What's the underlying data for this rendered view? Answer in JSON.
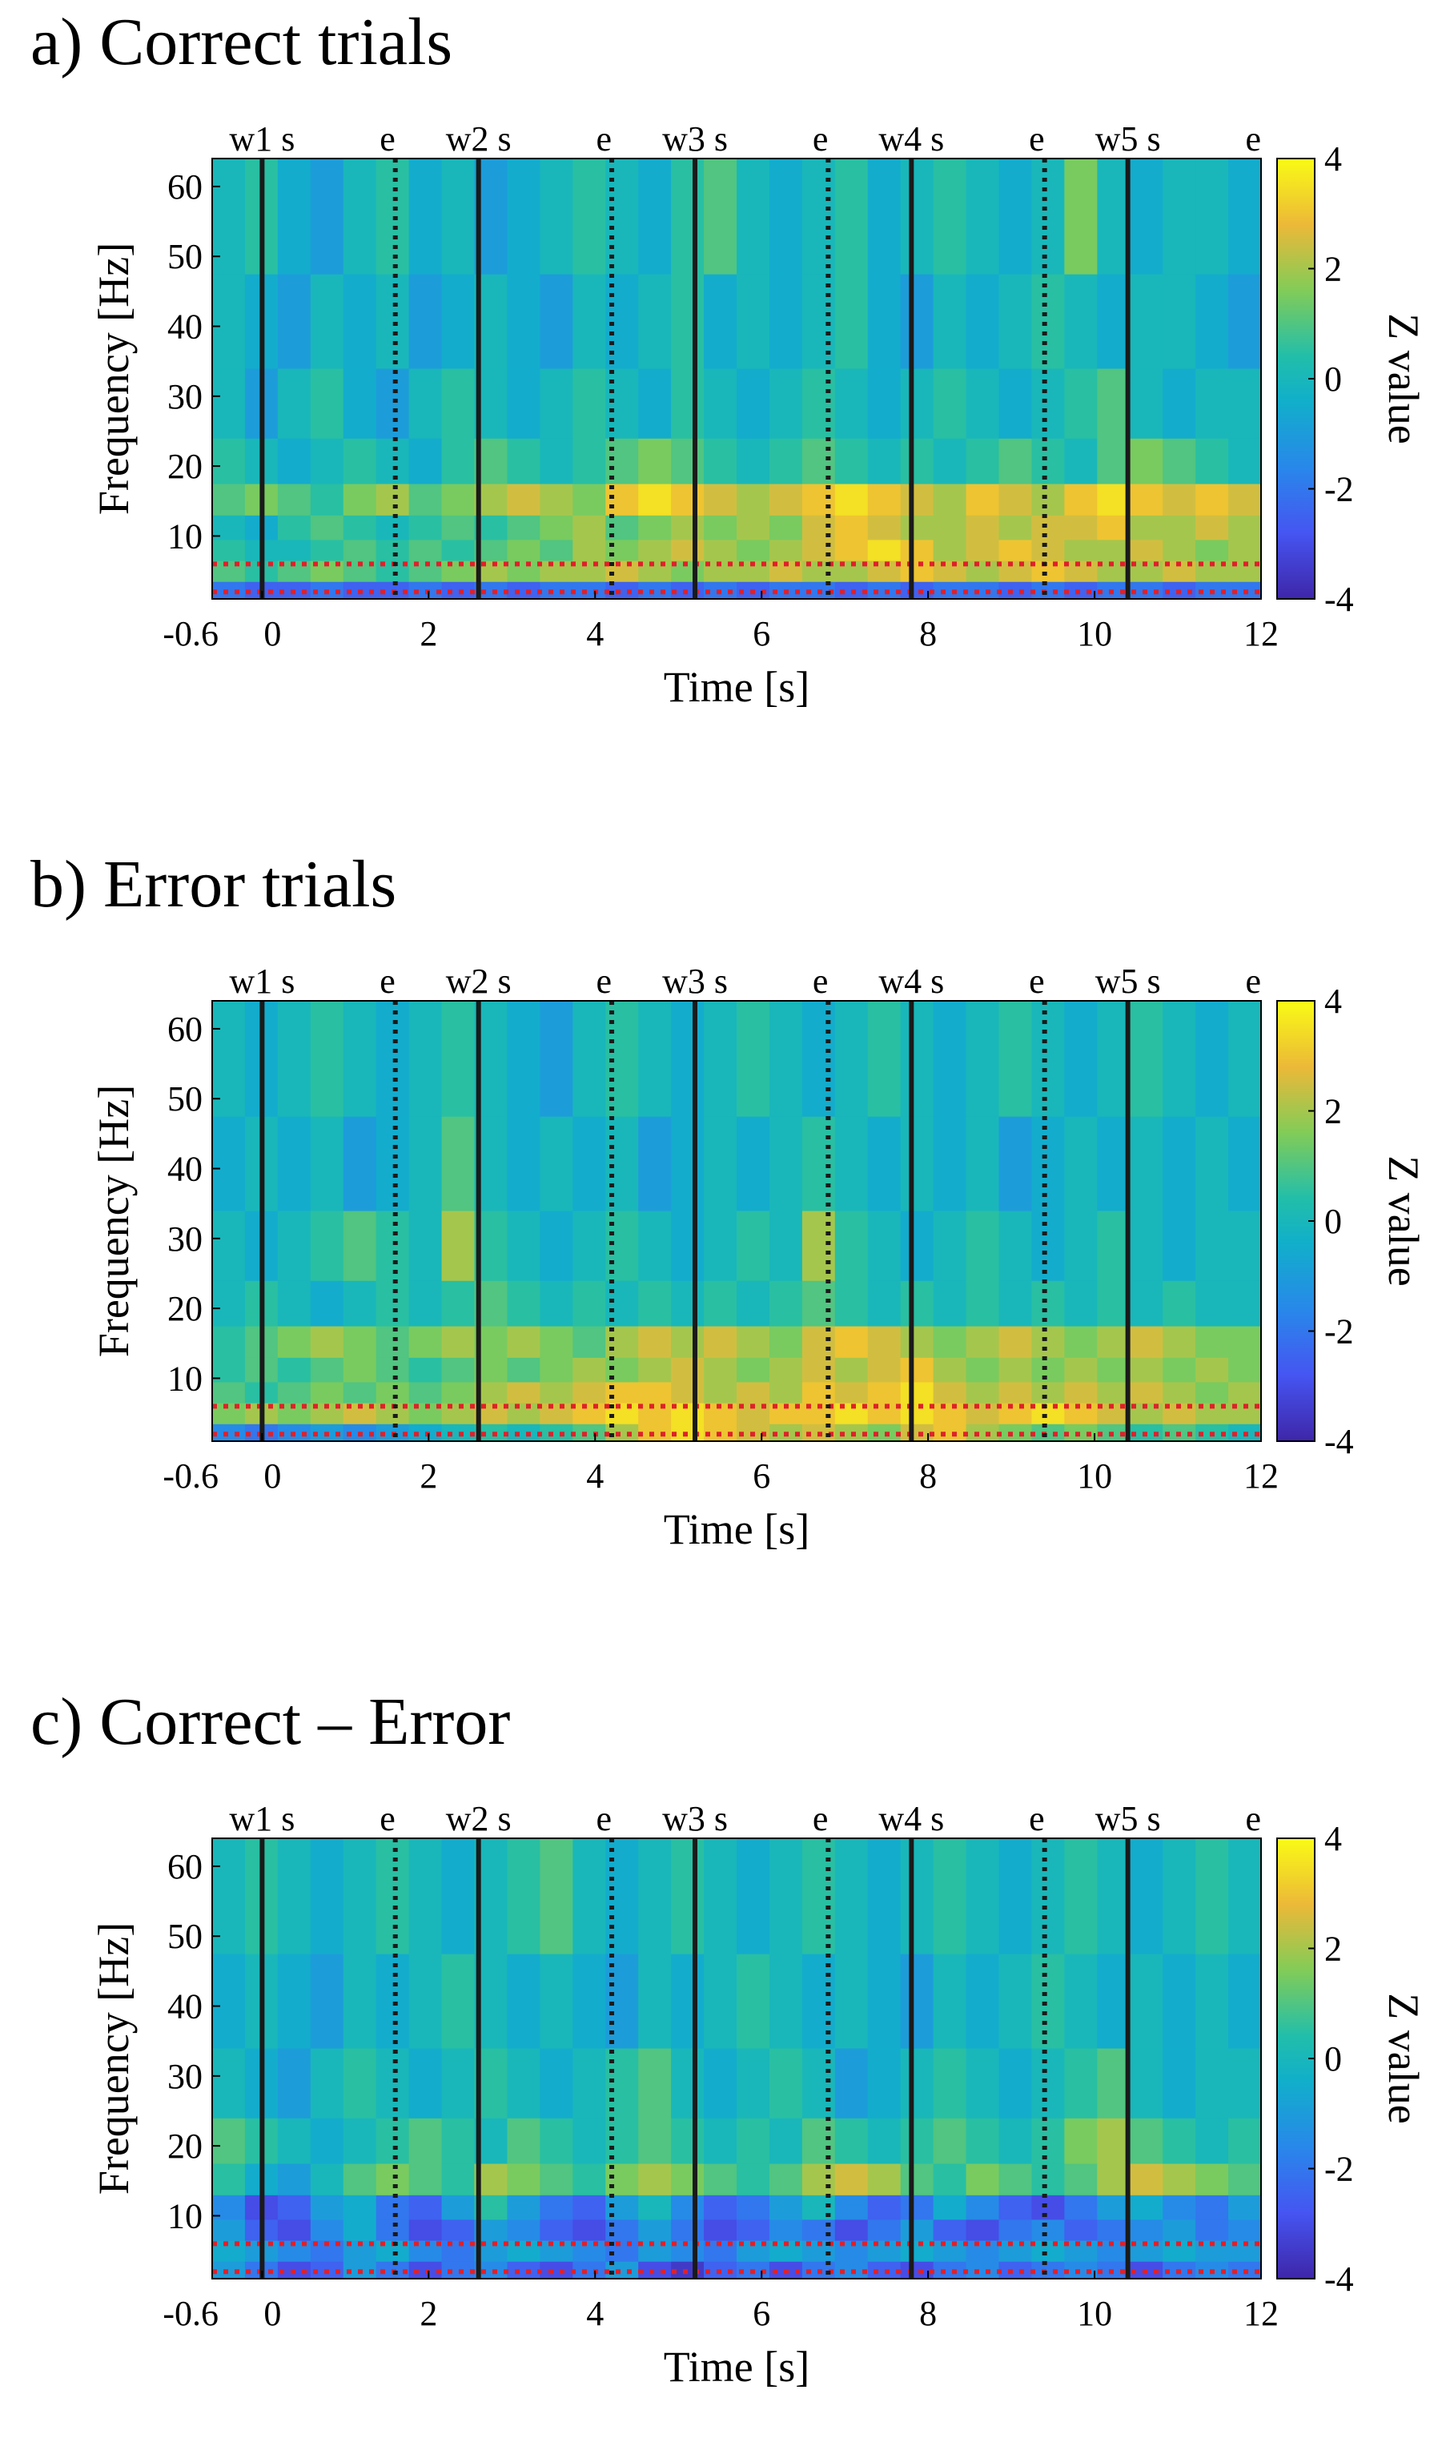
{
  "panels": [
    {
      "title": "a) Correct trials"
    },
    {
      "title": "b) Error trials"
    },
    {
      "title": "c) Correct – Error"
    }
  ],
  "colorbar": {
    "label": "Z value",
    "ticks": [
      "4",
      "2",
      "0",
      "-2",
      "-4"
    ]
  },
  "axes": {
    "ylabel": "Frequency [Hz]",
    "xlabel": "Time [s]",
    "yticks": [
      10,
      20,
      30,
      40,
      50,
      60
    ],
    "xticks": [
      "-0.6",
      "0",
      "2",
      "4",
      "6",
      "8",
      "10",
      "12"
    ]
  },
  "events": [
    {
      "label": "w1 s",
      "t": 0
    },
    {
      "label": "e",
      "t": 1.6
    },
    {
      "label": "w2 s",
      "t": 2.6
    },
    {
      "label": "e",
      "t": 4.2
    },
    {
      "label": "w3 s",
      "t": 5.2
    },
    {
      "label": "e",
      "t": 6.8
    },
    {
      "label": "w4 s",
      "t": 7.8
    },
    {
      "label": "e",
      "t": 9.4
    },
    {
      "label": "w5 s",
      "t": 10.4
    },
    {
      "label": "e",
      "t": 12
    }
  ],
  "chart_data": [
    {
      "type": "heatmap",
      "title": "a) Correct trials",
      "xlabel": "Time [s]",
      "ylabel": "Frequency [Hz]",
      "xlim": [
        -0.6,
        12
      ],
      "ylim": [
        1,
        64
      ],
      "clim": [
        -4,
        4
      ],
      "colorbar_label": "Z value",
      "solid_lines_s": [
        0,
        2.6,
        5.2,
        7.8,
        10.4
      ],
      "dotted_lines_s": [
        1.6,
        4.2,
        6.8,
        9.4
      ],
      "red_dotted_hz": [
        2,
        6
      ],
      "rows": [
        {
          "f": 2,
          "z": [
            -2,
            -2.5,
            -2.5,
            -2,
            -2.5,
            -2.5,
            -2,
            -2.5,
            -2,
            -2.5,
            -2,
            -2,
            -2.5,
            -2,
            -2.5,
            -2,
            -2.5,
            -2,
            -2,
            -2.5,
            -2,
            -2.5,
            -2,
            -2,
            -2.5,
            -2,
            -2.5,
            -2,
            -2,
            -2.5,
            -2,
            -2
          ]
        },
        {
          "f": 5,
          "z": [
            1,
            0.5,
            1,
            1.5,
            1,
            0.5,
            1,
            1.5,
            2,
            1.5,
            2,
            2,
            2.5,
            2,
            1.5,
            2,
            2,
            2.5,
            2,
            2,
            2.5,
            3,
            2.5,
            2,
            2.5,
            3,
            2.5,
            2,
            2,
            2.5,
            2,
            2
          ]
        },
        {
          "f": 8,
          "z": [
            0.5,
            0,
            0,
            0.5,
            1,
            0.5,
            1,
            0.5,
            1,
            1.5,
            1,
            2,
            1.5,
            2,
            2.5,
            2,
            1.5,
            2,
            2.5,
            3,
            3.5,
            3,
            2,
            2.5,
            3,
            2.5,
            2,
            2,
            2.5,
            2,
            1.5,
            2
          ]
        },
        {
          "f": 11,
          "z": [
            0,
            -0.5,
            0.5,
            1,
            0.5,
            0,
            0.5,
            1,
            0.5,
            1,
            1.5,
            2,
            1,
            1.5,
            2,
            1.5,
            2,
            1.5,
            2.5,
            3,
            2.5,
            2,
            2,
            2.5,
            2,
            2.5,
            2.5,
            3,
            2,
            2,
            2.5,
            2
          ]
        },
        {
          "f": 15,
          "z": [
            1,
            1.5,
            1,
            0.5,
            1.5,
            2,
            1,
            1.5,
            2,
            2.5,
            2,
            1.5,
            3,
            3.5,
            3,
            2.5,
            2,
            2.5,
            3,
            3.5,
            3,
            2.5,
            2,
            3,
            2.5,
            2,
            3,
            3.5,
            3,
            2.5,
            3,
            2.5
          ]
        },
        {
          "f": 20,
          "z": [
            0.5,
            0,
            -0.5,
            0,
            0.5,
            0,
            -0.5,
            0.5,
            1,
            0.5,
            0,
            0.5,
            1,
            1.5,
            1,
            0.5,
            0,
            0.5,
            1,
            0.5,
            0,
            0.5,
            0,
            0.5,
            1,
            0.5,
            0,
            1,
            1.5,
            1,
            0.5,
            0
          ]
        },
        {
          "f": 28,
          "z": [
            0,
            -1,
            0,
            0.5,
            -0.5,
            -1,
            0,
            0.5,
            0,
            -0.5,
            0,
            0.5,
            0,
            -0.5,
            0.5,
            0,
            -0.5,
            0,
            0.5,
            0,
            -0.5,
            0,
            0.5,
            0,
            -0.5,
            0,
            0.5,
            1,
            0,
            -0.5,
            0,
            0
          ]
        },
        {
          "f": 40,
          "z": [
            0,
            -0.5,
            -1,
            0,
            -0.5,
            0,
            -1,
            -0.5,
            0,
            -0.5,
            -1,
            0,
            -0.5,
            0,
            0.5,
            -0.5,
            0,
            -0.5,
            0,
            0.5,
            -0.5,
            -1,
            0,
            -0.5,
            0,
            0.5,
            0,
            -0.5,
            0,
            0,
            -0.5,
            -1
          ]
        },
        {
          "f": 55,
          "z": [
            0,
            0.5,
            -0.5,
            -1,
            0,
            0.5,
            -0.5,
            0,
            -1,
            -0.5,
            0,
            0.5,
            0,
            -0.5,
            0.5,
            1,
            0,
            -0.5,
            0,
            0.5,
            -0.5,
            0,
            0.5,
            0,
            -0.5,
            0,
            1.5,
            0,
            -0.5,
            0,
            0,
            -0.5
          ]
        }
      ]
    },
    {
      "type": "heatmap",
      "title": "b) Error trials",
      "xlabel": "Time [s]",
      "ylabel": "Frequency [Hz]",
      "xlim": [
        -0.6,
        12
      ],
      "ylim": [
        1,
        64
      ],
      "clim": [
        -4,
        4
      ],
      "colorbar_label": "Z value",
      "solid_lines_s": [
        0,
        2.6,
        5.2,
        7.8,
        10.4
      ],
      "dotted_lines_s": [
        1.6,
        4.2,
        6.8,
        9.4
      ],
      "red_dotted_hz": [
        2,
        6
      ],
      "rows": [
        {
          "f": 2,
          "z": [
            -1.5,
            -2,
            -1.5,
            -1,
            -1.5,
            -1,
            -0.5,
            0,
            0.5,
            0,
            0.5,
            1,
            2,
            3,
            3.5,
            3,
            2.5,
            2,
            2.5,
            2,
            1.5,
            2.5,
            3,
            2,
            1.5,
            1,
            1.5,
            1,
            0.5,
            1,
            0.5,
            0
          ]
        },
        {
          "f": 5,
          "z": [
            1.5,
            2,
            1.5,
            2,
            2.5,
            2,
            1.5,
            2,
            2.5,
            2,
            2.5,
            3,
            3.5,
            3,
            3.5,
            3,
            2.5,
            3,
            3,
            3.5,
            3,
            3.5,
            3,
            2.5,
            3,
            3.5,
            3,
            2.5,
            2,
            2.5,
            2,
            2
          ]
        },
        {
          "f": 8,
          "z": [
            1,
            0.5,
            1,
            1.5,
            1,
            1.5,
            1,
            1.5,
            2,
            2.5,
            2,
            2.5,
            3,
            3,
            2.5,
            2,
            2.5,
            2,
            3,
            2.5,
            3,
            3.5,
            2.5,
            2,
            2.5,
            2,
            2.5,
            2,
            2.5,
            2,
            1.5,
            2
          ]
        },
        {
          "f": 11,
          "z": [
            0.5,
            1,
            0.5,
            1,
            1.5,
            1,
            0.5,
            1,
            1.5,
            1,
            1.5,
            2,
            1.5,
            2,
            2.5,
            2,
            1.5,
            2,
            2.5,
            2,
            2.5,
            3,
            2,
            1.5,
            2,
            1.5,
            2,
            1.5,
            2,
            1.5,
            2,
            1.5
          ]
        },
        {
          "f": 15,
          "z": [
            0.5,
            1,
            1.5,
            2,
            1.5,
            1,
            1.5,
            2,
            1.5,
            2,
            1.5,
            1,
            2,
            2.5,
            2,
            2.5,
            2,
            1.5,
            2.5,
            3,
            2.5,
            2,
            1.5,
            2,
            2.5,
            2,
            1.5,
            2,
            2.5,
            2,
            1.5,
            1.5
          ]
        },
        {
          "f": 20,
          "z": [
            0,
            0.5,
            0,
            -0.5,
            0,
            0.5,
            0,
            0.5,
            1,
            0.5,
            0,
            0.5,
            0,
            0.5,
            0,
            0.5,
            0,
            0.5,
            1,
            0.5,
            0,
            0.5,
            0,
            0.5,
            0,
            0.5,
            0,
            0.5,
            0,
            0.5,
            0,
            0
          ]
        },
        {
          "f": 28,
          "z": [
            0,
            -0.5,
            0,
            0.5,
            1,
            0.5,
            0,
            2,
            0.5,
            0,
            -0.5,
            0,
            0.5,
            0,
            -0.5,
            0,
            0.5,
            0,
            2,
            0.5,
            0,
            -0.5,
            0,
            0.5,
            0,
            -0.5,
            0,
            0.5,
            0,
            -0.5,
            0,
            0
          ]
        },
        {
          "f": 40,
          "z": [
            -0.5,
            0,
            -0.5,
            0,
            -1,
            -0.5,
            0,
            1,
            0,
            -0.5,
            0,
            -0.5,
            0,
            -1,
            -0.5,
            0,
            -0.5,
            0,
            0.5,
            0,
            -0.5,
            0,
            -0.5,
            0,
            -1,
            -0.5,
            0,
            -0.5,
            0,
            -0.5,
            0,
            -0.5
          ]
        },
        {
          "f": 55,
          "z": [
            0,
            -0.5,
            0,
            0.5,
            0,
            -0.5,
            0,
            0.5,
            0,
            -0.5,
            -1,
            0,
            0.5,
            0,
            -0.5,
            0,
            0.5,
            0,
            -0.5,
            0,
            0.5,
            0,
            -0.5,
            0,
            0.5,
            0,
            -0.5,
            0,
            0.5,
            0,
            -0.5,
            0
          ]
        }
      ]
    },
    {
      "type": "heatmap",
      "title": "c) Correct – Error",
      "xlabel": "Time [s]",
      "ylabel": "Frequency [Hz]",
      "xlim": [
        -0.6,
        12
      ],
      "ylim": [
        1,
        64
      ],
      "clim": [
        -4,
        4
      ],
      "colorbar_label": "Z value",
      "solid_lines_s": [
        0,
        2.6,
        5.2,
        7.8,
        10.4
      ],
      "dotted_lines_s": [
        1.6,
        4.2,
        6.8,
        9.4
      ],
      "red_dotted_hz": [
        2,
        6
      ],
      "rows": [
        {
          "f": 2,
          "z": [
            -1,
            -2,
            -3,
            -2.5,
            -1,
            -2,
            -3,
            -2,
            -1.5,
            -2.5,
            -3,
            -2,
            -1,
            -3,
            -3.5,
            -2.5,
            -2,
            -3,
            -2,
            -1.5,
            -2.5,
            -3,
            -2,
            -1.5,
            -2.5,
            -2,
            -1.5,
            -2,
            -3,
            -2,
            -1.5,
            -2
          ]
        },
        {
          "f": 5,
          "z": [
            -0.5,
            -1,
            -1.5,
            -2,
            -1,
            -0.5,
            -1.5,
            -2,
            -1,
            -0.5,
            -1,
            -1.5,
            -2,
            -1,
            -1.5,
            -2,
            -1,
            -0.5,
            -1,
            -1.5,
            -1,
            -0.5,
            -1,
            -1.5,
            -1,
            -0.5,
            -1,
            -1.5,
            -1,
            -0.5,
            -1,
            -1
          ]
        },
        {
          "f": 8,
          "z": [
            -1,
            -2.5,
            -3,
            -1.5,
            -0.5,
            -2,
            -3,
            -2.5,
            -1,
            -1.5,
            -2.5,
            -3,
            -2,
            -1,
            -2,
            -3,
            -2.5,
            -1.5,
            -2,
            -3,
            -2,
            -1,
            -2.5,
            -3,
            -2,
            -1.5,
            -2.5,
            -2,
            -1.5,
            -1,
            -2,
            -1.5
          ]
        },
        {
          "f": 11,
          "z": [
            -1.5,
            -3,
            -2.5,
            -1,
            -0.5,
            -2,
            -2.5,
            -1,
            0.5,
            -1,
            -2,
            -2.5,
            -1,
            0,
            -1.5,
            -2.5,
            -2,
            -1,
            0,
            -1.5,
            -2.5,
            -2,
            -0.5,
            -1.5,
            -2.5,
            -3,
            -2,
            -1,
            -0.5,
            -1.5,
            -2,
            -1
          ]
        },
        {
          "f": 15,
          "z": [
            0.5,
            -0.5,
            -1,
            0,
            1,
            1.5,
            1,
            0.5,
            2,
            1.5,
            1,
            0.5,
            1.5,
            2,
            1.5,
            1,
            0.5,
            1,
            2,
            2.5,
            2,
            1,
            0.5,
            1.5,
            1,
            0.5,
            1,
            2,
            2.5,
            2,
            1.5,
            1
          ]
        },
        {
          "f": 20,
          "z": [
            1,
            0.5,
            0,
            -0.5,
            0,
            0.5,
            1,
            0.5,
            0,
            1,
            0.5,
            0,
            0.5,
            1,
            0.5,
            0,
            0.5,
            0,
            1,
            0.5,
            0,
            0.5,
            1,
            0.5,
            0,
            0.5,
            1.5,
            2,
            1,
            0.5,
            0,
            0.5
          ]
        },
        {
          "f": 28,
          "z": [
            0,
            -0.5,
            -1,
            0,
            0.5,
            0,
            -0.5,
            0,
            0.5,
            0,
            -0.5,
            0,
            0.5,
            1,
            0,
            -0.5,
            0,
            0.5,
            0,
            -1,
            -0.5,
            0,
            0.5,
            0,
            -0.5,
            0,
            0.5,
            1,
            0,
            -0.5,
            0,
            0
          ]
        },
        {
          "f": 40,
          "z": [
            -0.5,
            0,
            -0.5,
            -1,
            0,
            -0.5,
            0,
            0.5,
            0,
            -0.5,
            0,
            -0.5,
            -1,
            0,
            -0.5,
            0,
            0.5,
            0,
            -0.5,
            0,
            -0.5,
            -1,
            0,
            -0.5,
            0,
            0.5,
            0,
            -0.5,
            0,
            -0.5,
            0,
            -0.5
          ]
        },
        {
          "f": 55,
          "z": [
            0,
            0.5,
            0,
            -0.5,
            0,
            0.5,
            0,
            -0.5,
            0,
            0.5,
            1,
            0,
            -0.5,
            0,
            0.5,
            0,
            -0.5,
            0,
            0.5,
            0,
            -0.5,
            0,
            0.5,
            0,
            -0.5,
            0,
            0.5,
            0,
            -0.5,
            0,
            0.5,
            0
          ]
        }
      ]
    }
  ]
}
